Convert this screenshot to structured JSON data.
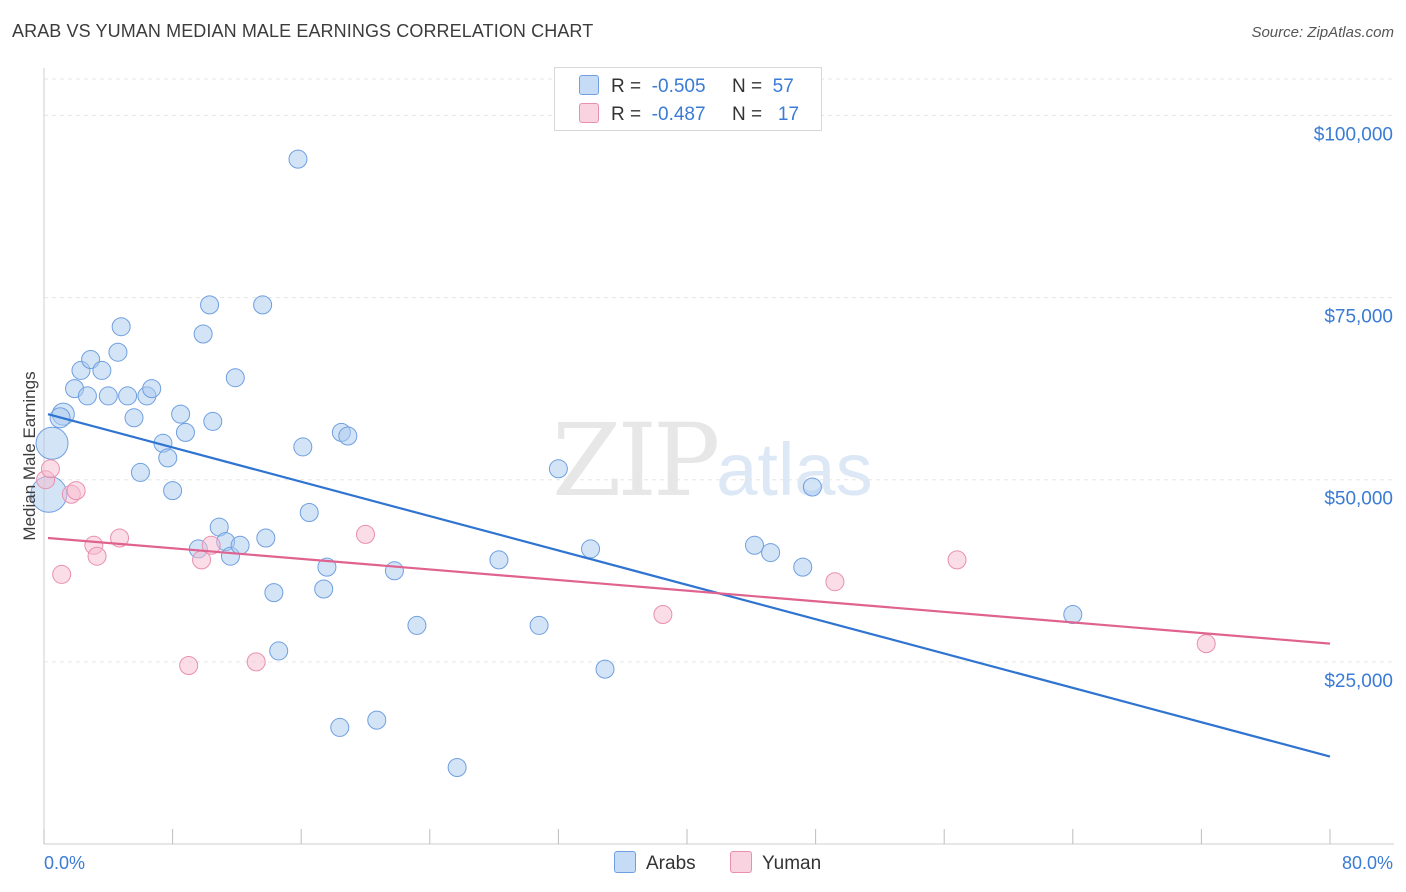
{
  "chart_data": {
    "type": "scatter",
    "title": "ARAB VS YUMAN MEDIAN MALE EARNINGS CORRELATION CHART",
    "source": "Source: ZipAtlas.com",
    "ylabel": "Median Male Earnings",
    "xlim": [
      0,
      80
    ],
    "ylim": [
      0,
      105000
    ],
    "x_tick_labels": [
      "0.0%",
      "80.0%"
    ],
    "y_ticks": [
      25000,
      50000,
      75000,
      100000
    ],
    "y_tick_labels": [
      "$25,000",
      "$50,000",
      "$75,000",
      "$100,000"
    ],
    "legend": [
      {
        "name": "Arabs",
        "r_label": "R =",
        "r_value": "-0.505",
        "n_label": "N =",
        "n_value": "57",
        "color": "#a9c9f0",
        "edge": "#6f9fe0"
      },
      {
        "name": "Yuman",
        "r_label": "R =",
        "r_value": "-0.487",
        "n_label": "N =",
        "n_value": "17",
        "color": "#f6bcd0",
        "edge": "#e890ae"
      }
    ],
    "series": [
      {
        "name": "Arabs",
        "color": "#a9c9f0",
        "line_color": "#2f74d0",
        "trend": {
          "x0": 0,
          "y0": 59000,
          "x1": 80,
          "y1": 12000
        },
        "points": [
          [
            0.5,
            55000,
            16
          ],
          [
            0.3,
            48000,
            18
          ],
          [
            1.2,
            59000,
            11
          ],
          [
            1.0,
            58500,
            10
          ],
          [
            2.3,
            65000,
            9
          ],
          [
            2.9,
            66500,
            9
          ],
          [
            1.9,
            62500,
            9
          ],
          [
            2.7,
            61500,
            9
          ],
          [
            3.6,
            65000,
            9
          ],
          [
            4.6,
            67500,
            9
          ],
          [
            4.8,
            71000,
            9
          ],
          [
            4.0,
            61500,
            9
          ],
          [
            5.2,
            61500,
            9
          ],
          [
            5.6,
            58500,
            9
          ],
          [
            6.4,
            61500,
            9
          ],
          [
            6.7,
            62500,
            9
          ],
          [
            6.0,
            51000,
            9
          ],
          [
            7.4,
            55000,
            9
          ],
          [
            7.7,
            53000,
            9
          ],
          [
            8.0,
            48500,
            9
          ],
          [
            8.5,
            59000,
            9
          ],
          [
            8.8,
            56500,
            9
          ],
          [
            9.9,
            70000,
            9
          ],
          [
            10.3,
            74000,
            9
          ],
          [
            10.5,
            58000,
            9
          ],
          [
            11.9,
            64000,
            9
          ],
          [
            13.6,
            74000,
            9
          ],
          [
            15.8,
            94000,
            9
          ],
          [
            9.6,
            40500,
            9
          ],
          [
            10.9,
            43500,
            9
          ],
          [
            11.3,
            41500,
            9
          ],
          [
            11.6,
            39500,
            9
          ],
          [
            12.2,
            41000,
            9
          ],
          [
            13.8,
            42000,
            9
          ],
          [
            14.3,
            34500,
            9
          ],
          [
            14.6,
            26500,
            9
          ],
          [
            16.1,
            54500,
            9
          ],
          [
            16.5,
            45500,
            9
          ],
          [
            17.4,
            35000,
            9
          ],
          [
            17.6,
            38000,
            9
          ],
          [
            18.5,
            56500,
            9
          ],
          [
            18.9,
            56000,
            9
          ],
          [
            18.4,
            16000,
            9
          ],
          [
            20.7,
            17000,
            9
          ],
          [
            21.8,
            37500,
            9
          ],
          [
            23.2,
            30000,
            9
          ],
          [
            25.7,
            10500,
            9
          ],
          [
            28.3,
            39000,
            9
          ],
          [
            30.8,
            30000,
            9
          ],
          [
            32.0,
            51500,
            9
          ],
          [
            34.0,
            40500,
            9
          ],
          [
            34.9,
            24000,
            9
          ],
          [
            44.2,
            41000,
            9
          ],
          [
            45.2,
            40000,
            9
          ],
          [
            47.2,
            38000,
            9
          ],
          [
            47.8,
            49000,
            9
          ],
          [
            64.0,
            31500,
            9
          ]
        ]
      },
      {
        "name": "Yuman",
        "color": "#f6bcd0",
        "line_color": "#e0628f",
        "trend": {
          "x0": 0,
          "y0": 42000,
          "x1": 80,
          "y1": 27500
        },
        "points": [
          [
            0.1,
            50000,
            9
          ],
          [
            0.4,
            51500,
            9
          ],
          [
            1.1,
            37000,
            9
          ],
          [
            1.7,
            48000,
            9
          ],
          [
            2.0,
            48500,
            9
          ],
          [
            3.1,
            41000,
            9
          ],
          [
            3.3,
            39500,
            9
          ],
          [
            4.7,
            42000,
            9
          ],
          [
            9.0,
            24500,
            9
          ],
          [
            9.8,
            39000,
            9
          ],
          [
            10.4,
            41000,
            9
          ],
          [
            13.2,
            25000,
            9
          ],
          [
            20.0,
            42500,
            9
          ],
          [
            38.5,
            31500,
            9
          ],
          [
            49.2,
            36000,
            9
          ],
          [
            56.8,
            39000,
            9
          ],
          [
            72.3,
            27500,
            9
          ]
        ]
      }
    ]
  }
}
